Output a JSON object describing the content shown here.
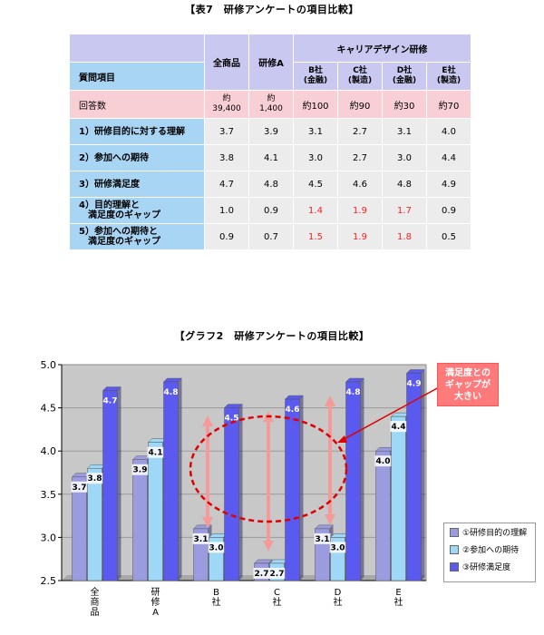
{
  "table": {
    "title": "【表7　研修アンケートの項目比較】",
    "header_item": "質問項目",
    "header_all": "全商品",
    "header_a": "研修A",
    "header_career": "キャリアデザイン研修",
    "companies": [
      {
        "name": "B社",
        "sub": "(金融)"
      },
      {
        "name": "C社",
        "sub": "(製造)"
      },
      {
        "name": "D社",
        "sub": "(金融)"
      },
      {
        "name": "E社",
        "sub": "(製造)"
      }
    ],
    "responses": {
      "label": "回答数",
      "all_1": "約",
      "all_2": "39,400",
      "a_1": "約",
      "a_2": "1,400",
      "b": "約100",
      "c": "約90",
      "d": "約30",
      "e": "約70"
    },
    "rows": [
      {
        "label_1": "1）研修目的に対する理解",
        "label_2": "",
        "values": [
          "3.7",
          "3.9",
          "3.1",
          "2.7",
          "3.1",
          "4.0"
        ],
        "red": [
          false,
          false,
          false,
          false,
          false,
          false
        ]
      },
      {
        "label_1": "2）参加への期待",
        "label_2": "",
        "values": [
          "3.8",
          "4.1",
          "3.0",
          "2.7",
          "3.0",
          "4.4"
        ],
        "red": [
          false,
          false,
          false,
          false,
          false,
          false
        ]
      },
      {
        "label_1": "3）研修満足度",
        "label_2": "",
        "values": [
          "4.7",
          "4.8",
          "4.5",
          "4.6",
          "4.8",
          "4.9"
        ],
        "red": [
          false,
          false,
          false,
          false,
          false,
          false
        ]
      },
      {
        "label_1": "4）目的理解と",
        "label_2": "　満足度のギャップ",
        "values": [
          "1.0",
          "0.9",
          "1.4",
          "1.9",
          "1.7",
          "0.9"
        ],
        "red": [
          false,
          false,
          true,
          true,
          true,
          false
        ]
      },
      {
        "label_1": "5）参加への期待と",
        "label_2": "　満足度のギャップ",
        "values": [
          "0.9",
          "0.7",
          "1.5",
          "1.9",
          "1.8",
          "0.5"
        ],
        "red": [
          false,
          false,
          true,
          true,
          true,
          false
        ]
      }
    ]
  },
  "graph_title": "【グラフ2　研修アンケートの項目比較】",
  "callout": {
    "line1": "満足度との",
    "line2": "ギャップが",
    "line3": "大きい"
  },
  "chart_data": {
    "type": "bar",
    "title": "【グラフ2　研修アンケートの項目比較】",
    "categories": [
      "全商品",
      "研修A",
      "B社",
      "C社",
      "D社",
      "E社"
    ],
    "category_labels_vertical": [
      [
        "全",
        "商",
        "品"
      ],
      [
        "研",
        "修",
        "A"
      ],
      [
        "B",
        "社"
      ],
      [
        "C",
        "社"
      ],
      [
        "D",
        "社"
      ],
      [
        "E",
        "社"
      ]
    ],
    "series": [
      {
        "name": "①研修目的の理解",
        "values": [
          3.7,
          3.9,
          3.1,
          2.7,
          3.1,
          4.0
        ],
        "color": "#9b9be0"
      },
      {
        "name": "②参加への期待",
        "values": [
          3.8,
          4.1,
          3.0,
          2.7,
          3.0,
          4.4
        ],
        "color": "#9fd8f6"
      },
      {
        "name": "③研修満足度",
        "values": [
          4.7,
          4.8,
          4.5,
          4.6,
          4.8,
          4.9
        ],
        "color": "#5a5af0"
      }
    ],
    "ylim": [
      2.5,
      5.0
    ],
    "yticks": [
      "2.5",
      "3.0",
      "3.5",
      "4.0",
      "4.5",
      "5.0"
    ],
    "grid": true,
    "legend_position": "bottom-right"
  }
}
